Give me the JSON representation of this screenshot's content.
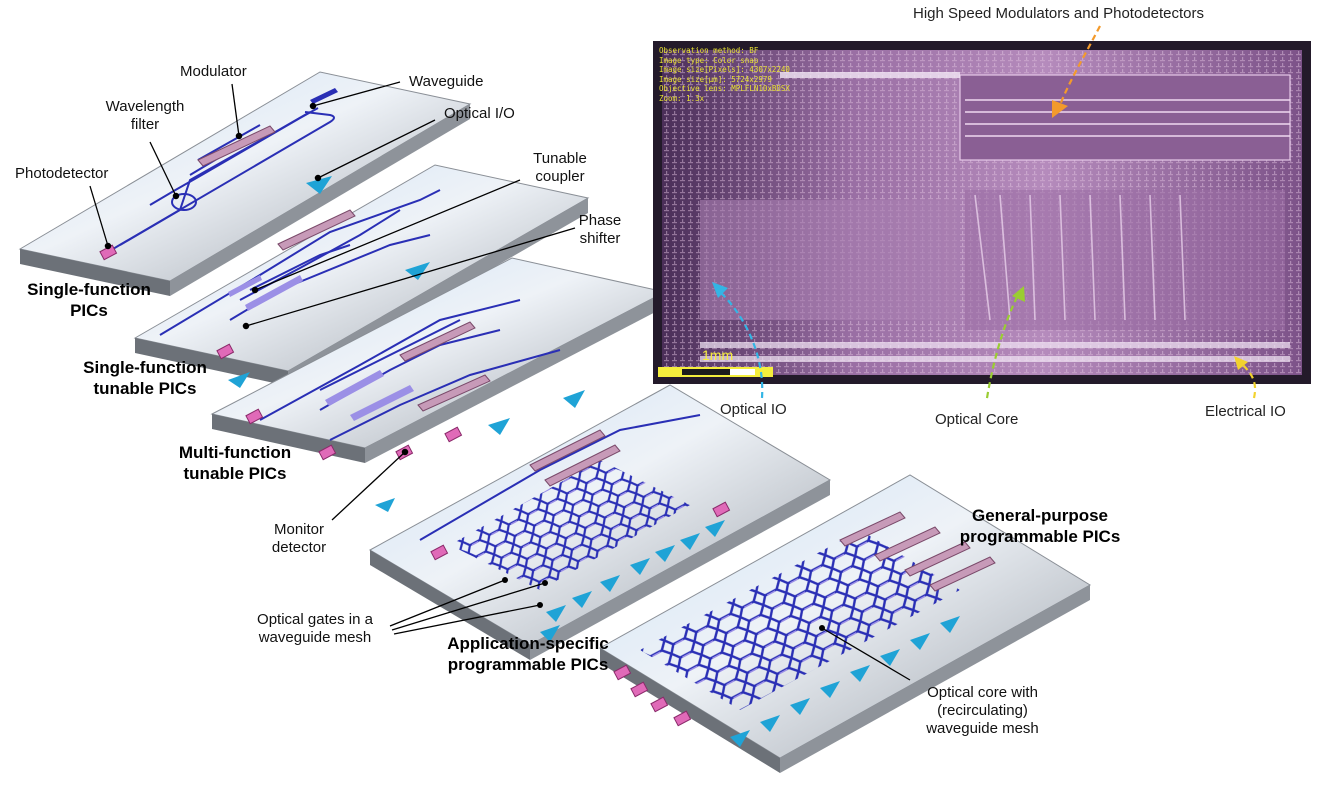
{
  "micrograph": {
    "top_label": "High Speed Modulators and Photodetectors",
    "meta_lines": [
      "Observation method: BF",
      "Image type: Color snap",
      "Image size[Pixels]: 4307x2240",
      "Image size[μm]: 5724x2979",
      "Objective lens: MPLFLN10xBDSX",
      "Zoom: 1.3x"
    ],
    "scale_bar": "1mm",
    "optical_io": "Optical IO",
    "optical_core": "Optical Core",
    "electrical_io": "Electrical IO"
  },
  "components": {
    "modulator": "Modulator",
    "waveguide": "Waveguide",
    "wavelength_filter": [
      "Wavelength",
      "filter"
    ],
    "optical_io": "Optical I/O",
    "photodetector": "Photodetector",
    "tunable_coupler": [
      "Tunable",
      "coupler"
    ],
    "phase_shifter": [
      "Phase",
      "shifter"
    ],
    "monitor_detector": [
      "Monitor",
      "detector"
    ],
    "optical_gates": [
      "Optical gates in a",
      "waveguide mesh"
    ],
    "optical_core": [
      "Optical core with",
      "(recirculating)",
      "waveguide mesh"
    ]
  },
  "categories": {
    "single_function": [
      "Single-function",
      "PICs"
    ],
    "single_tunable": [
      "Single-function",
      "tunable PICs"
    ],
    "multi_tunable": [
      "Multi-function",
      "tunable PICs"
    ],
    "app_specific": [
      "Application-specific",
      "programmable PICs"
    ],
    "general_purpose": [
      "General-purpose",
      "programmable PICs"
    ]
  },
  "colors": {
    "waveguide": "#2a2fb5",
    "coupler": "#9b8fe6",
    "modulator": "#c79ab8",
    "photodetector": "#e06ab8",
    "io_taper": "#1fa3d6",
    "chip_bg": "#6a3d72",
    "arrow_orange": "#f39a2b",
    "arrow_cyan": "#33b5e5",
    "arrow_green": "#9acd32",
    "arrow_yellow": "#f2d22e"
  }
}
